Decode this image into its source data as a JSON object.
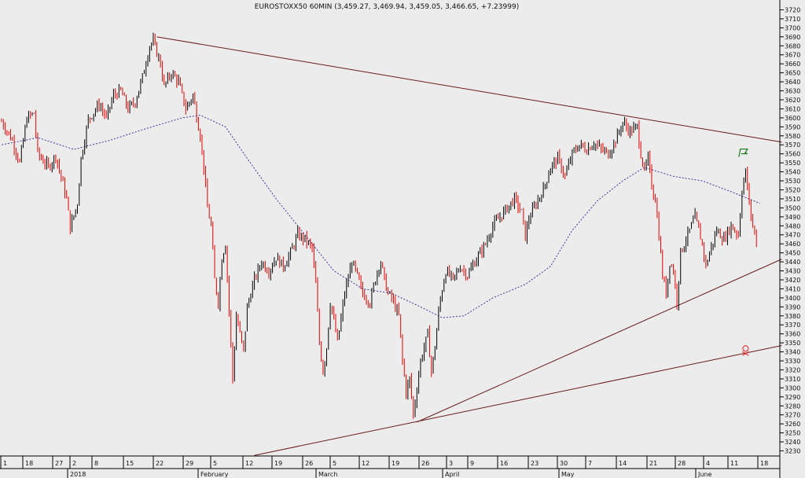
{
  "chart_data": {
    "type": "candlestick",
    "title": "EUROSTOXX50 60MIN (3,459.27, 3,469.94, 3,459.05, 3,466.65, +7.23999)",
    "ylim": [
      3225,
      3725
    ],
    "y_ticks": [
      3230,
      3240,
      3250,
      3260,
      3270,
      3280,
      3290,
      3300,
      3310,
      3320,
      3330,
      3340,
      3350,
      3360,
      3370,
      3380,
      3390,
      3400,
      3410,
      3420,
      3430,
      3440,
      3450,
      3460,
      3470,
      3480,
      3490,
      3500,
      3510,
      3520,
      3530,
      3540,
      3550,
      3560,
      3570,
      3580,
      3590,
      3600,
      3610,
      3620,
      3630,
      3640,
      3650,
      3660,
      3670,
      3680,
      3690,
      3700,
      3710,
      3720
    ],
    "x_day_labels": [
      "1",
      "18",
      "27",
      "2",
      "8",
      "15",
      "22",
      "29",
      "5",
      "12",
      "19",
      "26",
      "5",
      "12",
      "19",
      "26",
      "3",
      "9",
      "16",
      "23",
      "30",
      "7",
      "14",
      "21",
      "28",
      "4",
      "11",
      "18"
    ],
    "x_month_labels": [
      "2018",
      "February",
      "March",
      "April",
      "May",
      "June"
    ],
    "price_path": [
      {
        "d": 0,
        "v": 3596
      },
      {
        "d": 3,
        "v": 3575
      },
      {
        "d": 5,
        "v": 3550
      },
      {
        "d": 7,
        "v": 3600
      },
      {
        "d": 9,
        "v": 3605
      },
      {
        "d": 10,
        "v": 3560
      },
      {
        "d": 13,
        "v": 3545
      },
      {
        "d": 15,
        "v": 3558
      },
      {
        "d": 18,
        "v": 3510
      },
      {
        "d": 19,
        "v": 3478
      },
      {
        "d": 21,
        "v": 3505
      },
      {
        "d": 22,
        "v": 3555
      },
      {
        "d": 24,
        "v": 3598
      },
      {
        "d": 27,
        "v": 3615
      },
      {
        "d": 29,
        "v": 3600
      },
      {
        "d": 31,
        "v": 3625
      },
      {
        "d": 33,
        "v": 3630
      },
      {
        "d": 35,
        "v": 3610
      },
      {
        "d": 37,
        "v": 3618
      },
      {
        "d": 39,
        "v": 3645
      },
      {
        "d": 41,
        "v": 3680
      },
      {
        "d": 42,
        "v": 3685
      },
      {
        "d": 44,
        "v": 3660
      },
      {
        "d": 45,
        "v": 3635
      },
      {
        "d": 47,
        "v": 3650
      },
      {
        "d": 49,
        "v": 3640
      },
      {
        "d": 51,
        "v": 3610
      },
      {
        "d": 53,
        "v": 3625
      },
      {
        "d": 55,
        "v": 3580
      },
      {
        "d": 56,
        "v": 3545
      },
      {
        "d": 57,
        "v": 3500
      },
      {
        "d": 58,
        "v": 3480
      },
      {
        "d": 59,
        "v": 3420
      },
      {
        "d": 60,
        "v": 3395
      },
      {
        "d": 61,
        "v": 3445
      },
      {
        "d": 62,
        "v": 3460
      },
      {
        "d": 63,
        "v": 3385
      },
      {
        "d": 64,
        "v": 3310
      },
      {
        "d": 65,
        "v": 3380
      },
      {
        "d": 66,
        "v": 3360
      },
      {
        "d": 67,
        "v": 3340
      },
      {
        "d": 68,
        "v": 3390
      },
      {
        "d": 70,
        "v": 3420
      },
      {
        "d": 72,
        "v": 3440
      },
      {
        "d": 74,
        "v": 3430
      },
      {
        "d": 76,
        "v": 3445
      },
      {
        "d": 78,
        "v": 3435
      },
      {
        "d": 80,
        "v": 3450
      },
      {
        "d": 82,
        "v": 3470
      },
      {
        "d": 84,
        "v": 3465
      },
      {
        "d": 86,
        "v": 3455
      },
      {
        "d": 87,
        "v": 3415
      },
      {
        "d": 88,
        "v": 3350
      },
      {
        "d": 89,
        "v": 3318
      },
      {
        "d": 90,
        "v": 3345
      },
      {
        "d": 91,
        "v": 3395
      },
      {
        "d": 92,
        "v": 3375
      },
      {
        "d": 93,
        "v": 3350
      },
      {
        "d": 95,
        "v": 3405
      },
      {
        "d": 97,
        "v": 3440
      },
      {
        "d": 98,
        "v": 3430
      },
      {
        "d": 100,
        "v": 3405
      },
      {
        "d": 102,
        "v": 3395
      },
      {
        "d": 104,
        "v": 3430
      },
      {
        "d": 105,
        "v": 3440
      },
      {
        "d": 106,
        "v": 3420
      },
      {
        "d": 107,
        "v": 3405
      },
      {
        "d": 108,
        "v": 3400
      },
      {
        "d": 110,
        "v": 3380
      },
      {
        "d": 111,
        "v": 3330
      },
      {
        "d": 112,
        "v": 3295
      },
      {
        "d": 113,
        "v": 3310
      },
      {
        "d": 114,
        "v": 3270
      },
      {
        "d": 115,
        "v": 3300
      },
      {
        "d": 116,
        "v": 3330
      },
      {
        "d": 117,
        "v": 3345
      },
      {
        "d": 118,
        "v": 3360
      },
      {
        "d": 119,
        "v": 3318
      },
      {
        "d": 120,
        "v": 3345
      },
      {
        "d": 121,
        "v": 3385
      },
      {
        "d": 122,
        "v": 3410
      },
      {
        "d": 123,
        "v": 3430
      },
      {
        "d": 125,
        "v": 3420
      },
      {
        "d": 127,
        "v": 3435
      },
      {
        "d": 129,
        "v": 3425
      },
      {
        "d": 131,
        "v": 3440
      },
      {
        "d": 134,
        "v": 3460
      },
      {
        "d": 136,
        "v": 3480
      },
      {
        "d": 138,
        "v": 3490
      },
      {
        "d": 140,
        "v": 3500
      },
      {
        "d": 142,
        "v": 3510
      },
      {
        "d": 144,
        "v": 3495
      },
      {
        "d": 145,
        "v": 3468
      },
      {
        "d": 146,
        "v": 3488
      },
      {
        "d": 148,
        "v": 3505
      },
      {
        "d": 150,
        "v": 3520
      },
      {
        "d": 152,
        "v": 3545
      },
      {
        "d": 154,
        "v": 3555
      },
      {
        "d": 156,
        "v": 3535
      },
      {
        "d": 158,
        "v": 3560
      },
      {
        "d": 160,
        "v": 3570
      },
      {
        "d": 162,
        "v": 3565
      },
      {
        "d": 164,
        "v": 3572
      },
      {
        "d": 166,
        "v": 3565
      },
      {
        "d": 168,
        "v": 3560
      },
      {
        "d": 170,
        "v": 3575
      },
      {
        "d": 172,
        "v": 3595
      },
      {
        "d": 174,
        "v": 3585
      },
      {
        "d": 176,
        "v": 3590
      },
      {
        "d": 177,
        "v": 3560
      },
      {
        "d": 178,
        "v": 3540
      },
      {
        "d": 179,
        "v": 3555
      },
      {
        "d": 180,
        "v": 3525
      },
      {
        "d": 181,
        "v": 3510
      },
      {
        "d": 182,
        "v": 3470
      },
      {
        "d": 183,
        "v": 3425
      },
      {
        "d": 184,
        "v": 3405
      },
      {
        "d": 185,
        "v": 3440
      },
      {
        "d": 186,
        "v": 3430
      },
      {
        "d": 187,
        "v": 3395
      },
      {
        "d": 188,
        "v": 3450
      },
      {
        "d": 190,
        "v": 3470
      },
      {
        "d": 192,
        "v": 3490
      },
      {
        "d": 194,
        "v": 3460
      },
      {
        "d": 195,
        "v": 3435
      },
      {
        "d": 196,
        "v": 3450
      },
      {
        "d": 198,
        "v": 3475
      },
      {
        "d": 200,
        "v": 3465
      },
      {
        "d": 202,
        "v": 3480
      },
      {
        "d": 204,
        "v": 3470
      },
      {
        "d": 205,
        "v": 3520
      },
      {
        "d": 206,
        "v": 3540
      },
      {
        "d": 207,
        "v": 3505
      },
      {
        "d": 208,
        "v": 3480
      },
      {
        "d": 209,
        "v": 3462
      }
    ],
    "moving_average": [
      {
        "d": 0,
        "v": 3570
      },
      {
        "d": 10,
        "v": 3578
      },
      {
        "d": 20,
        "v": 3565
      },
      {
        "d": 30,
        "v": 3575
      },
      {
        "d": 40,
        "v": 3588
      },
      {
        "d": 50,
        "v": 3600
      },
      {
        "d": 55,
        "v": 3603
      },
      {
        "d": 62,
        "v": 3590
      },
      {
        "d": 68,
        "v": 3555
      },
      {
        "d": 76,
        "v": 3510
      },
      {
        "d": 84,
        "v": 3470
      },
      {
        "d": 92,
        "v": 3430
      },
      {
        "d": 100,
        "v": 3410
      },
      {
        "d": 108,
        "v": 3405
      },
      {
        "d": 116,
        "v": 3390
      },
      {
        "d": 122,
        "v": 3378
      },
      {
        "d": 128,
        "v": 3380
      },
      {
        "d": 136,
        "v": 3400
      },
      {
        "d": 145,
        "v": 3415
      },
      {
        "d": 152,
        "v": 3435
      },
      {
        "d": 158,
        "v": 3475
      },
      {
        "d": 165,
        "v": 3508
      },
      {
        "d": 172,
        "v": 3530
      },
      {
        "d": 178,
        "v": 3545
      },
      {
        "d": 186,
        "v": 3535
      },
      {
        "d": 194,
        "v": 3530
      },
      {
        "d": 202,
        "v": 3518
      },
      {
        "d": 210,
        "v": 3505
      }
    ],
    "trendlines": [
      {
        "from": {
          "d": 43,
          "v": 3690
        },
        "to": {
          "d": 216,
          "v": 3573
        }
      },
      {
        "from": {
          "d": 115,
          "v": 3262
        },
        "to": {
          "d": 216,
          "v": 3443
        }
      },
      {
        "from": {
          "d": 70,
          "v": 3225
        },
        "to": {
          "d": 216,
          "v": 3347
        }
      }
    ],
    "markers": [
      {
        "icon": "green-flag-icon",
        "d": 205,
        "v": 3561,
        "color": "#1a7a1a"
      },
      {
        "icon": "skull-icon",
        "d": 206,
        "v": 3342,
        "color": "#e02020"
      }
    ],
    "colors": {
      "candle": "#000000",
      "candle_down": "#e00000",
      "moving_average": "#3a3aa0",
      "trendline": "#6b1a1a"
    },
    "grid": false,
    "legend": "none"
  }
}
